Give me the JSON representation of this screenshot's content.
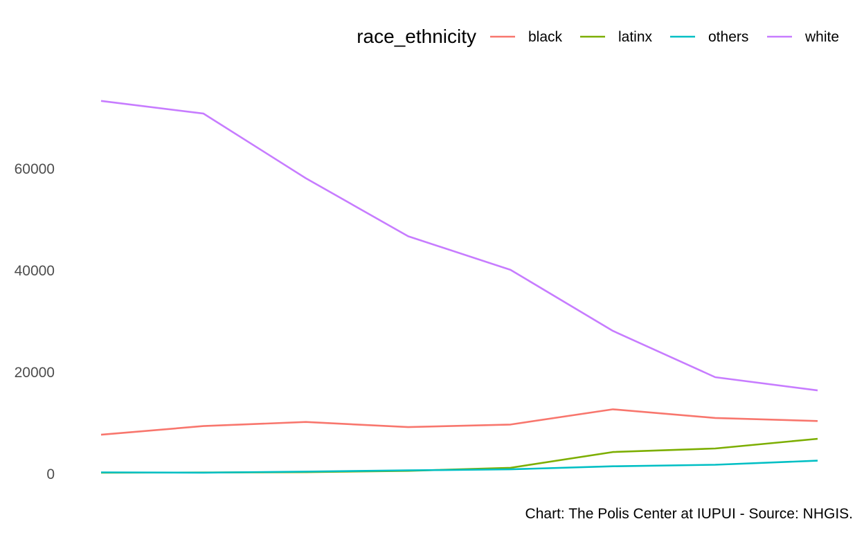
{
  "chart_data": {
    "type": "line",
    "title": "",
    "xlabel": "",
    "ylabel": "",
    "grid": false,
    "x": [
      1,
      2,
      3,
      4,
      5,
      6,
      7,
      8
    ],
    "ylim": [
      0,
      75000
    ],
    "yticks": [
      0,
      20000,
      40000,
      60000
    ],
    "ytick_labels": [
      "0",
      "20000",
      "40000",
      "60000"
    ],
    "legend": {
      "title": "race_ethnicity",
      "placement": "top"
    },
    "series": [
      {
        "name": "black",
        "color": "#F8766D",
        "values": [
          7600,
          9300,
          10100,
          9100,
          9600,
          12600,
          10900,
          10300
        ]
      },
      {
        "name": "latinx",
        "color": "#7CAE00",
        "values": [
          150,
          180,
          250,
          500,
          1100,
          4200,
          4900,
          6800
        ]
      },
      {
        "name": "others",
        "color": "#00BFC4",
        "values": [
          200,
          150,
          350,
          600,
          800,
          1400,
          1700,
          2500
        ]
      },
      {
        "name": "white",
        "color": "#C77CFF",
        "values": [
          73200,
          70700,
          58000,
          46600,
          40000,
          28000,
          18900,
          16300
        ]
      }
    ],
    "caption": "Chart: The Polis Center at IUPUI - Source: NHGIS."
  }
}
